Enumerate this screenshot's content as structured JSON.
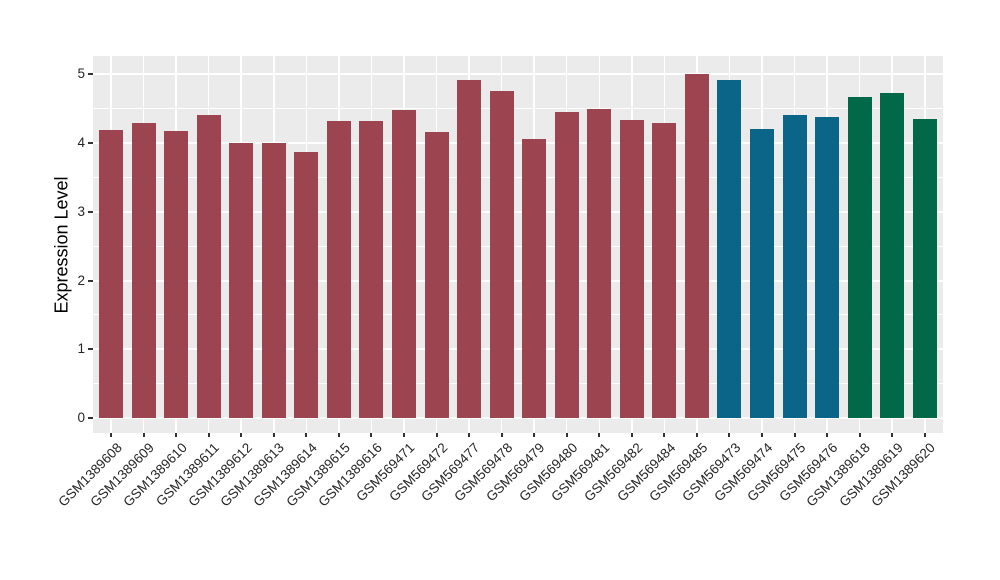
{
  "figure": {
    "background": "#FFFFFF",
    "panel_background": "#EBEBEB",
    "gridline_color": "#FFFFFF",
    "tick_color": "#333333",
    "axis_text_color": "#262626",
    "axis_title_color": "#000000"
  },
  "chart_data": {
    "type": "bar",
    "title": "",
    "xlabel": "",
    "ylabel": "Expression Level",
    "ylim": [
      0,
      5
    ],
    "yticks": [
      "0",
      "1",
      "2",
      "3",
      "4",
      "5"
    ],
    "minor_ticks": [
      0.5,
      1.5,
      2.5,
      3.5,
      4.5
    ],
    "grid": true,
    "legend": false,
    "categories": [
      "GSM1389608",
      "GSM1389609",
      "GSM1389610",
      "GSM1389611",
      "GSM1389612",
      "GSM1389613",
      "GSM1389614",
      "GSM1389615",
      "GSM1389616",
      "GSM569471",
      "GSM569472",
      "GSM569477",
      "GSM569478",
      "GSM569479",
      "GSM569480",
      "GSM569481",
      "GSM569482",
      "GSM569484",
      "GSM569485",
      "GSM569473",
      "GSM569474",
      "GSM569475",
      "GSM569476",
      "GSM1389618",
      "GSM1389619",
      "GSM1389620"
    ],
    "values": [
      4.18,
      4.29,
      4.17,
      4.4,
      3.99,
      3.99,
      3.87,
      4.32,
      4.32,
      4.47,
      4.15,
      4.91,
      4.75,
      4.05,
      4.44,
      4.49,
      4.33,
      4.29,
      5.0,
      4.91,
      4.2,
      4.4,
      4.37,
      4.67,
      4.72,
      4.34
    ],
    "groups": [
      0,
      0,
      0,
      0,
      0,
      0,
      0,
      0,
      0,
      0,
      0,
      0,
      0,
      0,
      0,
      0,
      0,
      0,
      0,
      1,
      1,
      1,
      1,
      2,
      2,
      2
    ],
    "group_colors": [
      "#9C4450",
      "#0B6589",
      "#016848"
    ]
  }
}
